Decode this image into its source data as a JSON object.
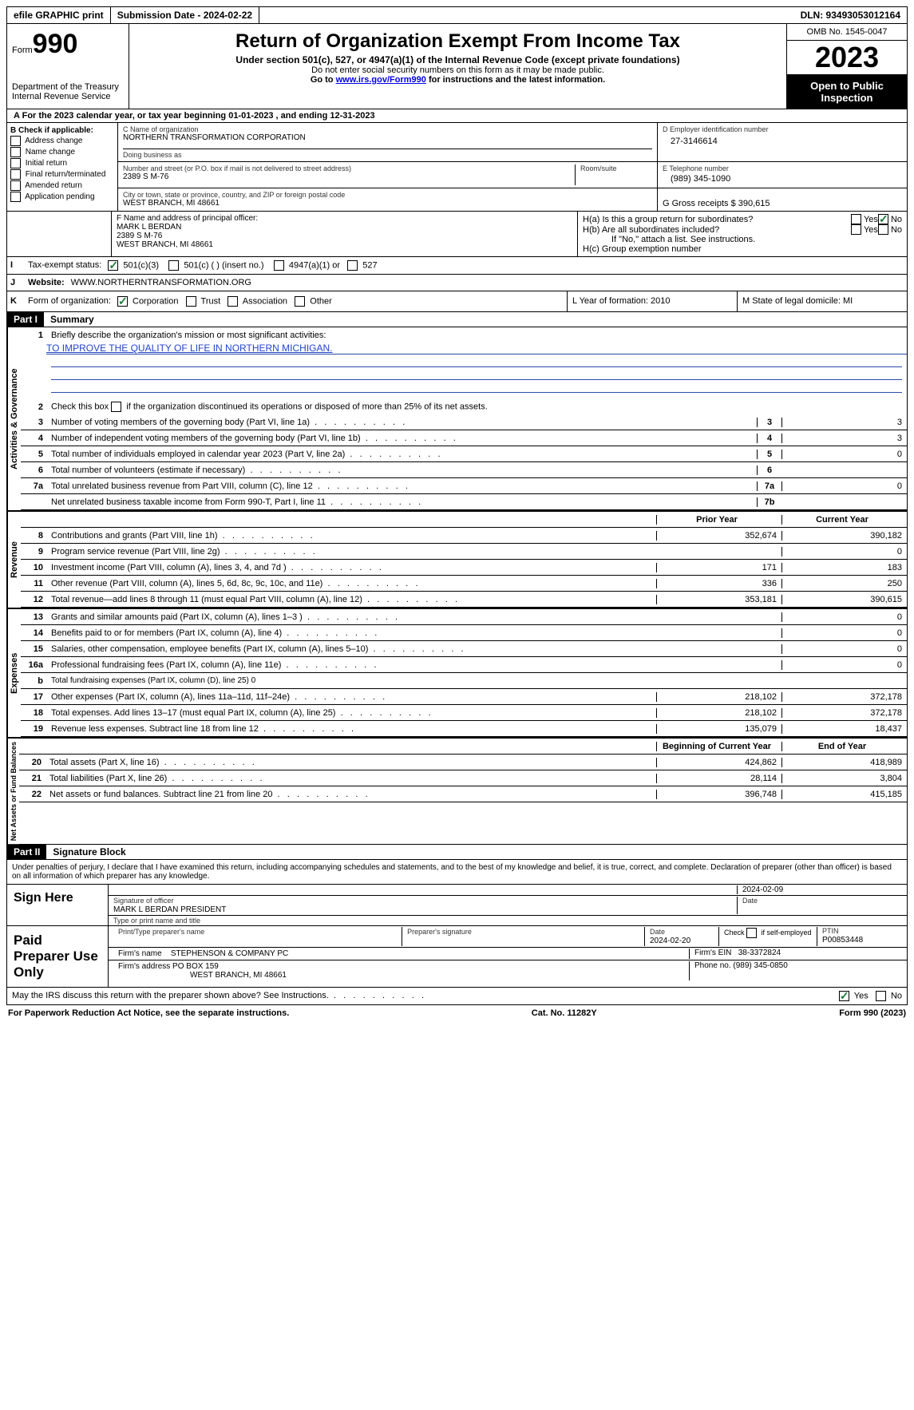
{
  "topbar": {
    "efile": "efile GRAPHIC print",
    "submission_label": "Submission Date - 2024-02-22",
    "dln_label": "DLN: 93493053012164"
  },
  "header": {
    "form_word": "Form",
    "form_num": "990",
    "title": "Return of Organization Exempt From Income Tax",
    "sub": "Under section 501(c), 527, or 4947(a)(1) of the Internal Revenue Code (except private foundations)",
    "line2": "Do not enter social security numbers on this form as it may be made public.",
    "line3_a": "Go to ",
    "line3_link": "www.irs.gov/Form990",
    "line3_b": " for instructions and the latest information.",
    "dept": "Department of the Treasury",
    "dept2": "Internal Revenue Service",
    "omb": "OMB No. 1545-0047",
    "year": "2023",
    "ribbon": "Open to Public Inspection"
  },
  "line_a": "For the 2023 calendar year, or tax year beginning 01-01-2023    , and ending 12-31-2023",
  "box_b": {
    "header": "B Check if applicable:",
    "opts": [
      "Address change",
      "Name change",
      "Initial return",
      "Final return/terminated",
      "Amended return",
      "Application pending"
    ]
  },
  "box_c": {
    "label": "C Name of organization",
    "name": "NORTHERN TRANSFORMATION CORPORATION",
    "dba_label": "Doing business as",
    "addr_label": "Number and street (or P.O. box if mail is not delivered to street address)",
    "room_label": "Room/suite",
    "addr": "2389 S M-76",
    "city_label": "City or town, state or province, country, and ZIP or foreign postal code",
    "city": "WEST BRANCH, MI  48661"
  },
  "box_d": {
    "label": "D Employer identification number",
    "value": "27-3146614"
  },
  "box_e": {
    "label": "E Telephone number",
    "value": "(989) 345-1090"
  },
  "box_g": {
    "label": "G Gross receipts $",
    "value": "390,615"
  },
  "box_f": {
    "label": "F  Name and address of principal officer:",
    "name": "MARK L BERDAN",
    "addr": "2389 S M-76",
    "city": "WEST BRANCH, MI  48661"
  },
  "box_h": {
    "ha": "H(a)  Is this a group return for subordinates?",
    "hb": "H(b)  Are all subordinates included?",
    "hb_note": "If \"No,\" attach a list. See instructions.",
    "hc": "H(c)  Group exemption number",
    "yes": "Yes",
    "no": "No"
  },
  "row_i": {
    "label": "I",
    "text": "Tax-exempt status:",
    "o1": "501(c)(3)",
    "o2": "501(c) (  ) (insert no.)",
    "o3": "4947(a)(1) or",
    "o4": "527"
  },
  "row_j": {
    "label": "J",
    "text": "Website:",
    "value": "WWW.NORTHERNTRANSFORMATION.ORG"
  },
  "row_k": {
    "label": "K",
    "text": "Form of organization:",
    "o1": "Corporation",
    "o2": "Trust",
    "o3": "Association",
    "o4": "Other"
  },
  "row_l": {
    "text": "L Year of formation: 2010"
  },
  "row_m": {
    "text": "M State of legal domicile: MI"
  },
  "part1": {
    "header": "Part I",
    "title": "Summary"
  },
  "summary": {
    "q1": "Briefly describe the organization's mission or most significant activities:",
    "q1_ans": "TO IMPROVE THE QUALITY OF LIFE IN NORTHERN MICHIGAN.",
    "q2": "Check this box      if the organization discontinued its operations or disposed of more than 25% of its net assets.",
    "rows_gov": [
      {
        "n": "3",
        "d": "Number of voting members of the governing body (Part VI, line 1a)",
        "box": "3",
        "v": "3"
      },
      {
        "n": "4",
        "d": "Number of independent voting members of the governing body (Part VI, line 1b)",
        "box": "4",
        "v": "3"
      },
      {
        "n": "5",
        "d": "Total number of individuals employed in calendar year 2023 (Part V, line 2a)",
        "box": "5",
        "v": "0"
      },
      {
        "n": "6",
        "d": "Total number of volunteers (estimate if necessary)",
        "box": "6",
        "v": ""
      },
      {
        "n": "7a",
        "d": "Total unrelated business revenue from Part VIII, column (C), line 12",
        "box": "7a",
        "v": "0"
      },
      {
        "n": "",
        "d": "Net unrelated business taxable income from Form 990-T, Part I, line 11",
        "box": "7b",
        "v": ""
      }
    ],
    "hdr_prior": "Prior Year",
    "hdr_curr": "Current Year",
    "rows_rev": [
      {
        "n": "8",
        "d": "Contributions and grants (Part VIII, line 1h)",
        "p": "352,674",
        "c": "390,182"
      },
      {
        "n": "9",
        "d": "Program service revenue (Part VIII, line 2g)",
        "p": "",
        "c": "0"
      },
      {
        "n": "10",
        "d": "Investment income (Part VIII, column (A), lines 3, 4, and 7d )",
        "p": "171",
        "c": "183"
      },
      {
        "n": "11",
        "d": "Other revenue (Part VIII, column (A), lines 5, 6d, 8c, 9c, 10c, and 11e)",
        "p": "336",
        "c": "250"
      },
      {
        "n": "12",
        "d": "Total revenue—add lines 8 through 11 (must equal Part VIII, column (A), line 12)",
        "p": "353,181",
        "c": "390,615"
      }
    ],
    "rows_exp": [
      {
        "n": "13",
        "d": "Grants and similar amounts paid (Part IX, column (A), lines 1–3 )",
        "p": "",
        "c": "0"
      },
      {
        "n": "14",
        "d": "Benefits paid to or for members (Part IX, column (A), line 4)",
        "p": "",
        "c": "0"
      },
      {
        "n": "15",
        "d": "Salaries, other compensation, employee benefits (Part IX, column (A), lines 5–10)",
        "p": "",
        "c": "0"
      },
      {
        "n": "16a",
        "d": "Professional fundraising fees (Part IX, column (A), line 11e)",
        "p": "",
        "c": "0"
      },
      {
        "n": "b",
        "d": "Total fundraising expenses (Part IX, column (D), line 25) 0",
        "p": "SHADE",
        "c": "SHADE"
      },
      {
        "n": "17",
        "d": "Other expenses (Part IX, column (A), lines 11a–11d, 11f–24e)",
        "p": "218,102",
        "c": "372,178"
      },
      {
        "n": "18",
        "d": "Total expenses. Add lines 13–17 (must equal Part IX, column (A), line 25)",
        "p": "218,102",
        "c": "372,178"
      },
      {
        "n": "19",
        "d": "Revenue less expenses. Subtract line 18 from line 12",
        "p": "135,079",
        "c": "18,437"
      }
    ],
    "hdr_beg": "Beginning of Current Year",
    "hdr_end": "End of Year",
    "rows_net": [
      {
        "n": "20",
        "d": "Total assets (Part X, line 16)",
        "p": "424,862",
        "c": "418,989"
      },
      {
        "n": "21",
        "d": "Total liabilities (Part X, line 26)",
        "p": "28,114",
        "c": "3,804"
      },
      {
        "n": "22",
        "d": "Net assets or fund balances. Subtract line 21 from line 20",
        "p": "396,748",
        "c": "415,185"
      }
    ],
    "vtabs": {
      "gov": "Activities & Governance",
      "rev": "Revenue",
      "exp": "Expenses",
      "net": "Net Assets or Fund Balances"
    }
  },
  "part2": {
    "header": "Part II",
    "title": "Signature Block"
  },
  "penalty": "Under penalties of perjury, I declare that I have examined this return, including accompanying schedules and statements, and to the best of my knowledge and belief, it is true, correct, and complete. Declaration of preparer (other than officer) is based on all information of which preparer has any knowledge.",
  "sign": {
    "here": "Sign Here",
    "sig_officer_label": "Signature of officer",
    "date_label": "Date",
    "officer_name": "MARK L BERDAN PRESIDENT",
    "officer_type_label": "Type or print name and title",
    "sig_date": "2024-02-09"
  },
  "paid": {
    "label": "Paid Preparer Use Only",
    "prep_name_label": "Print/Type preparer's name",
    "prep_sig_label": "Preparer's signature",
    "date_label": "Date",
    "date": "2024-02-20",
    "check_label": "Check         if self-employed",
    "ptin_label": "PTIN",
    "ptin": "P00853448",
    "firm_name_label": "Firm's name",
    "firm_name": "STEPHENSON & COMPANY PC",
    "firm_ein_label": "Firm's EIN",
    "firm_ein": "38-3372824",
    "firm_addr_label": "Firm's address",
    "firm_addr1": "PO BOX 159",
    "firm_addr2": "WEST BRANCH, MI  48661",
    "phone_label": "Phone no.",
    "phone": "(989) 345-0850"
  },
  "discuss": {
    "text": "May the IRS discuss this return with the preparer shown above? See Instructions.",
    "yes": "Yes",
    "no": "No"
  },
  "footer": {
    "left": "For Paperwork Reduction Act Notice, see the separate instructions.",
    "mid": "Cat. No. 11282Y",
    "right_a": "Form ",
    "right_b": "990",
    "right_c": " (2023)"
  }
}
